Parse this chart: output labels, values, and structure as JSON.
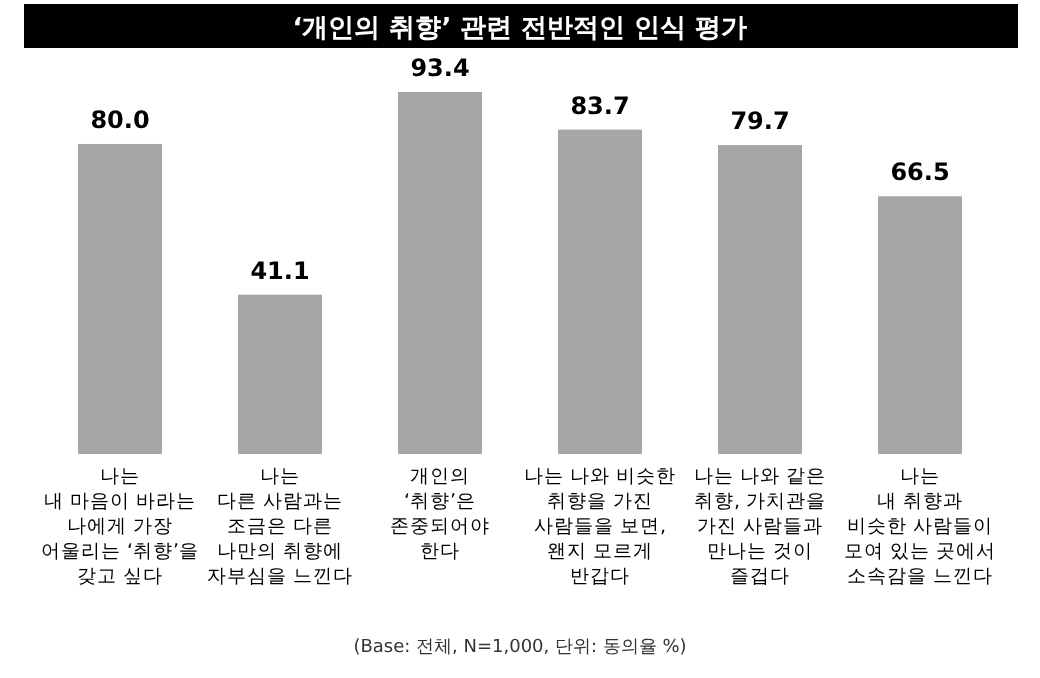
{
  "chart_data": {
    "type": "bar",
    "title": "‘개인의 취향’ 관련 전반적인 인식 평가",
    "categories": [
      "나는\n내 마음이 바라는\n나에게 가장\n어울리는 ‘취향’을\n갖고 싶다",
      "나는\n다른 사람과는\n조금은 다른\n나만의 취향에\n자부심을 느낀다",
      "개인의\n‘취향’은\n존중되어야\n한다",
      "나는 나와 비슷한\n취향을 가진\n사람들을 보면,\n왠지 모르게\n반갑다",
      "나는 나와 같은\n취향, 가치관을\n가진 사람들과\n만나는 것이\n즐겁다",
      "나는\n내 취향과\n비슷한 사람들이\n모여 있는 곳에서\n소속감을 느낀다"
    ],
    "values": [
      80.0,
      41.1,
      93.4,
      83.7,
      79.7,
      66.5
    ],
    "value_labels": [
      "80.0",
      "41.1",
      "93.4",
      "83.7",
      "79.7",
      "66.5"
    ],
    "color": "#a6a6a6",
    "annotations": [
      "(Base: 전체, N=1,000, 단위: 동의율 %)"
    ]
  }
}
